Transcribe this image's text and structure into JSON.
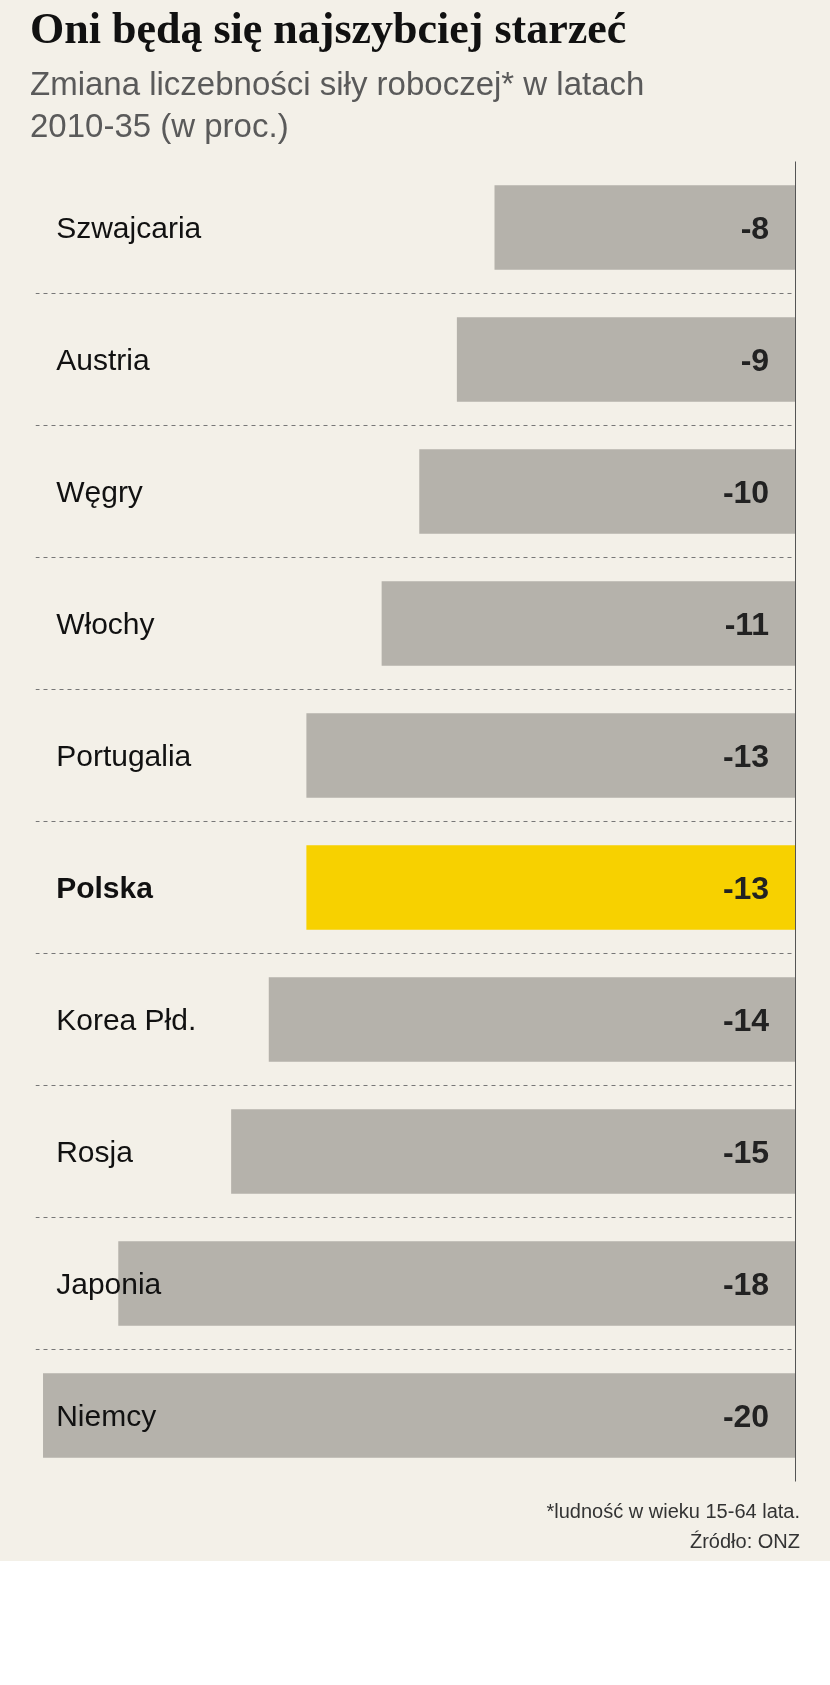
{
  "chart_data": {
    "type": "bar",
    "orientation": "horizontal",
    "title": "Oni będą się najszybciej starzeć",
    "subtitle": "Zmiana liczebności siły roboczej* w latach 2010-35 (w proc.)",
    "categories": [
      "Szwajcaria",
      "Austria",
      "Węgry",
      "Włochy",
      "Portugalia",
      "Polska",
      "Korea Płd.",
      "Rosja",
      "Japonia",
      "Niemcy"
    ],
    "values": [
      -8,
      -9,
      -10,
      -11,
      -13,
      -13,
      -14,
      -15,
      -18,
      -20
    ],
    "colors": [
      "#b5b2ab",
      "#b5b2ab",
      "#b5b2ab",
      "#b5b2ab",
      "#b5b2ab",
      "#f7d100",
      "#b5b2ab",
      "#b5b2ab",
      "#b5b2ab",
      "#b5b2ab"
    ],
    "data_labels": true,
    "grid": "y",
    "annotations": [
      "*ludność w wieku 15-64 lata.",
      "Źródło: ONZ"
    ]
  }
}
